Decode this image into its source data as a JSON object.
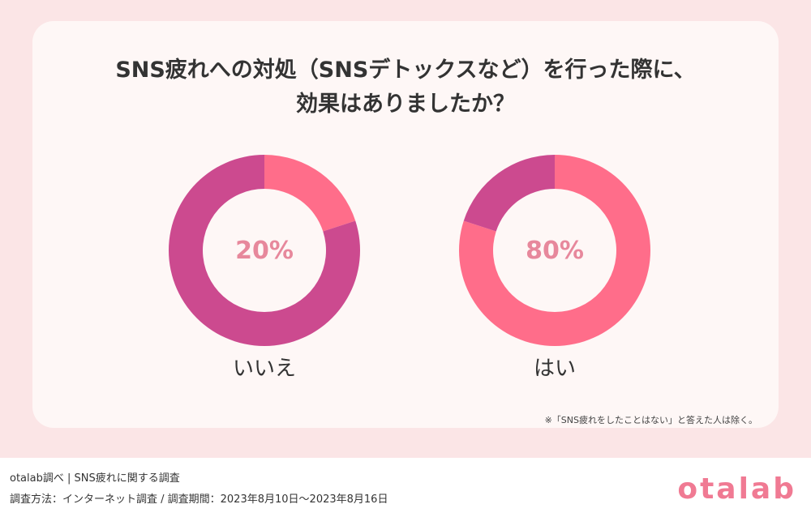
{
  "title": {
    "line1": "SNS疲れへの対処（SNSデトックスなど）を行った際に、",
    "line2": "効果はありましたか？"
  },
  "chart_data": {
    "type": "pie",
    "categories": [
      "はい",
      "いいえ"
    ],
    "values": [
      80,
      20
    ],
    "unit": "%",
    "colors": {
      "はい": "#ff6d8a",
      "いいえ": "#cc4a8f"
    },
    "panels": [
      {
        "category": "いいえ",
        "percent_label": "20%",
        "highlight_value": 20,
        "highlight_color": "#ff6d8a",
        "rest_color": "#cc4a8f"
      },
      {
        "category": "はい",
        "percent_label": "80%",
        "highlight_value": 80,
        "highlight_color": "#ff6d8a",
        "rest_color": "#cc4a8f"
      }
    ]
  },
  "note": "※「SNS疲れをしたことはない」と答えた人は除く。",
  "footer": {
    "line1": "otalab調べ | SNS疲れに関する調査",
    "line2": "調査方法：インターネット調査 / 調査期間：2023年8月10日〜2023年8月16日"
  },
  "logo_text": "otalab"
}
